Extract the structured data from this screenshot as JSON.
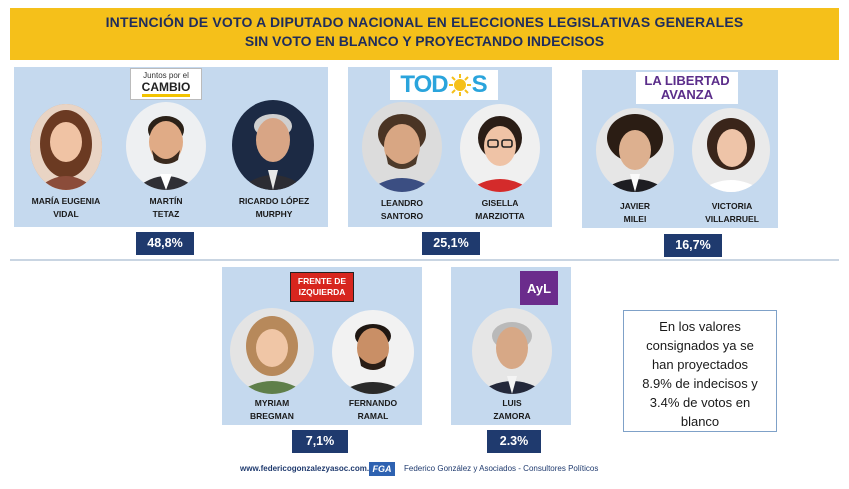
{
  "title": {
    "line1": "INTENCIÓN DE VOTO A DIPUTADO NACIONAL EN ELECCIONES LEGISLATIVAS GENERALES",
    "line2": "SIN VOTO EN BLANCO Y PROYECTANDO INDECISOS"
  },
  "parties": {
    "jxc": {
      "logo_line1": "Juntos por el",
      "logo_line2": "CAMBIO",
      "percentage": "48,8%",
      "candidates": [
        {
          "line1": "MARÍA EUGENIA",
          "line2": "VIDAL"
        },
        {
          "line1": "MARTÍN",
          "line2": "TETAZ"
        },
        {
          "line1": "RICARDO LÓPEZ",
          "line2": "MURPHY"
        }
      ]
    },
    "todos": {
      "logo_text_a": "TOD",
      "logo_text_b": "S",
      "percentage": "25,1%",
      "candidates": [
        {
          "line1": "LEANDRO",
          "line2": "SANTORO"
        },
        {
          "line1": "GISELLA",
          "line2": "MARZIOTTA"
        }
      ]
    },
    "lla": {
      "logo_line1": "LA LIBERTAD",
      "logo_line2": "AVANZA",
      "percentage": "16,7%",
      "candidates": [
        {
          "line1": "JAVIER",
          "line2": "MILEI"
        },
        {
          "line1": "VICTORIA",
          "line2": "VILLARRUEL"
        }
      ]
    },
    "fit": {
      "logo_line1": "FRENTE DE",
      "logo_line2": "IZQUIERDA",
      "percentage": "7,1%",
      "candidates": [
        {
          "line1": "MYRIAM",
          "line2": "BREGMAN"
        },
        {
          "line1": "FERNANDO",
          "line2": "RAMAL"
        }
      ]
    },
    "ayl": {
      "logo_text": "AyL",
      "percentage": "2.3%",
      "candidates": [
        {
          "line1": "LUIS",
          "line2": "ZAMORA"
        }
      ]
    }
  },
  "note": {
    "line1": "En los valores",
    "line2": "consignados ya se",
    "line3": "han proyectados",
    "line4": "8.9% de indecisos y",
    "line5": "3.4% de votos en",
    "line6": "blanco"
  },
  "footer": {
    "url": "www.federicogonzalezyasoc.com.ar",
    "logo": "FGA",
    "firm": "Federico González y Asociados - Consultores Políticos"
  },
  "colors": {
    "title_bg": "#f5c01a",
    "title_text": "#1f2d5c",
    "panel_bg": "#c5d9ee",
    "pct_bg": "#1f3a6e"
  }
}
